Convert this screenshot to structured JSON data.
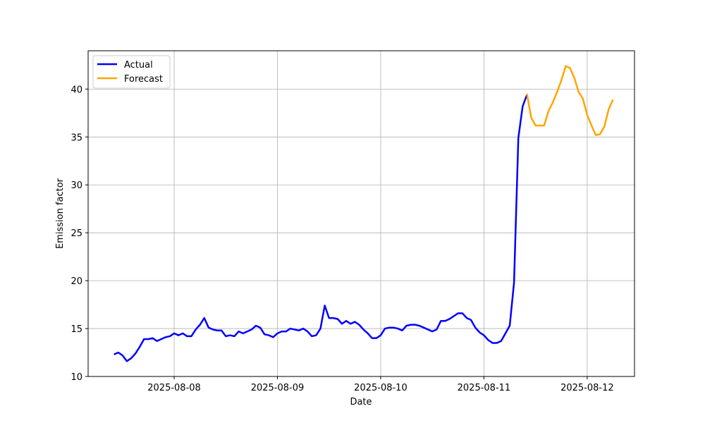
{
  "chart_data": {
    "type": "line",
    "title": "",
    "xlabel": "Date",
    "ylabel": "Emission factor",
    "xlim": [
      "2025-08-07 04:00",
      "2025-08-12 11:00"
    ],
    "ylim": [
      10,
      44
    ],
    "grid": true,
    "legend_position": "top-left",
    "x_ticks": [
      "2025-08-08",
      "2025-08-09",
      "2025-08-10",
      "2025-08-11",
      "2025-08-12"
    ],
    "y_ticks": [
      10,
      15,
      20,
      25,
      30,
      35,
      40
    ],
    "series": [
      {
        "name": "Actual",
        "color": "#0000ff",
        "points": [
          [
            "2025-08-07 10:00",
            12.3
          ],
          [
            "2025-08-07 11:00",
            12.5
          ],
          [
            "2025-08-07 12:00",
            12.2
          ],
          [
            "2025-08-07 13:00",
            11.6
          ],
          [
            "2025-08-07 14:00",
            11.9
          ],
          [
            "2025-08-07 15:00",
            12.4
          ],
          [
            "2025-08-07 16:00",
            13.1
          ],
          [
            "2025-08-07 17:00",
            13.9
          ],
          [
            "2025-08-07 18:00",
            13.9
          ],
          [
            "2025-08-07 19:00",
            14.0
          ],
          [
            "2025-08-07 20:00",
            13.7
          ],
          [
            "2025-08-07 21:00",
            13.9
          ],
          [
            "2025-08-07 22:00",
            14.1
          ],
          [
            "2025-08-07 23:00",
            14.2
          ],
          [
            "2025-08-08 00:00",
            14.5
          ],
          [
            "2025-08-08 01:00",
            14.3
          ],
          [
            "2025-08-08 02:00",
            14.5
          ],
          [
            "2025-08-08 03:00",
            14.2
          ],
          [
            "2025-08-08 04:00",
            14.2
          ],
          [
            "2025-08-08 05:00",
            14.9
          ],
          [
            "2025-08-08 06:00",
            15.4
          ],
          [
            "2025-08-08 07:00",
            16.1
          ],
          [
            "2025-08-08 08:00",
            15.1
          ],
          [
            "2025-08-08 09:00",
            14.9
          ],
          [
            "2025-08-08 10:00",
            14.8
          ],
          [
            "2025-08-08 11:00",
            14.8
          ],
          [
            "2025-08-08 12:00",
            14.2
          ],
          [
            "2025-08-08 13:00",
            14.3
          ],
          [
            "2025-08-08 14:00",
            14.2
          ],
          [
            "2025-08-08 15:00",
            14.7
          ],
          [
            "2025-08-08 16:00",
            14.5
          ],
          [
            "2025-08-08 17:00",
            14.7
          ],
          [
            "2025-08-08 18:00",
            14.9
          ],
          [
            "2025-08-08 19:00",
            15.3
          ],
          [
            "2025-08-08 20:00",
            15.1
          ],
          [
            "2025-08-08 21:00",
            14.4
          ],
          [
            "2025-08-08 22:00",
            14.3
          ],
          [
            "2025-08-08 23:00",
            14.1
          ],
          [
            "2025-08-09 00:00",
            14.5
          ],
          [
            "2025-08-09 01:00",
            14.7
          ],
          [
            "2025-08-09 02:00",
            14.7
          ],
          [
            "2025-08-09 03:00",
            15.0
          ],
          [
            "2025-08-09 04:00",
            14.9
          ],
          [
            "2025-08-09 05:00",
            14.8
          ],
          [
            "2025-08-09 06:00",
            15.0
          ],
          [
            "2025-08-09 07:00",
            14.7
          ],
          [
            "2025-08-09 08:00",
            14.2
          ],
          [
            "2025-08-09 09:00",
            14.3
          ],
          [
            "2025-08-09 10:00",
            15.0
          ],
          [
            "2025-08-09 11:00",
            17.4
          ],
          [
            "2025-08-09 12:00",
            16.1
          ],
          [
            "2025-08-09 13:00",
            16.1
          ],
          [
            "2025-08-09 14:00",
            16.0
          ],
          [
            "2025-08-09 15:00",
            15.5
          ],
          [
            "2025-08-09 16:00",
            15.8
          ],
          [
            "2025-08-09 17:00",
            15.5
          ],
          [
            "2025-08-09 18:00",
            15.7
          ],
          [
            "2025-08-09 19:00",
            15.4
          ],
          [
            "2025-08-09 20:00",
            14.9
          ],
          [
            "2025-08-09 21:00",
            14.5
          ],
          [
            "2025-08-09 22:00",
            14.0
          ],
          [
            "2025-08-09 23:00",
            14.0
          ],
          [
            "2025-08-10 00:00",
            14.3
          ],
          [
            "2025-08-10 01:00",
            15.0
          ],
          [
            "2025-08-10 02:00",
            15.1
          ],
          [
            "2025-08-10 03:00",
            15.1
          ],
          [
            "2025-08-10 04:00",
            15.0
          ],
          [
            "2025-08-10 05:00",
            14.8
          ],
          [
            "2025-08-10 06:00",
            15.3
          ],
          [
            "2025-08-10 07:00",
            15.4
          ],
          [
            "2025-08-10 08:00",
            15.4
          ],
          [
            "2025-08-10 09:00",
            15.3
          ],
          [
            "2025-08-10 10:00",
            15.1
          ],
          [
            "2025-08-10 11:00",
            14.9
          ],
          [
            "2025-08-10 12:00",
            14.7
          ],
          [
            "2025-08-10 13:00",
            14.9
          ],
          [
            "2025-08-10 14:00",
            15.8
          ],
          [
            "2025-08-10 15:00",
            15.8
          ],
          [
            "2025-08-10 16:00",
            16.0
          ],
          [
            "2025-08-10 17:00",
            16.3
          ],
          [
            "2025-08-10 18:00",
            16.6
          ],
          [
            "2025-08-10 19:00",
            16.6
          ],
          [
            "2025-08-10 20:00",
            16.1
          ],
          [
            "2025-08-10 21:00",
            15.9
          ],
          [
            "2025-08-10 22:00",
            15.1
          ],
          [
            "2025-08-10 23:00",
            14.6
          ],
          [
            "2025-08-11 00:00",
            14.3
          ],
          [
            "2025-08-11 01:00",
            13.8
          ],
          [
            "2025-08-11 02:00",
            13.5
          ],
          [
            "2025-08-11 03:00",
            13.5
          ],
          [
            "2025-08-11 04:00",
            13.7
          ],
          [
            "2025-08-11 05:00",
            14.5
          ],
          [
            "2025-08-11 06:00",
            15.3
          ],
          [
            "2025-08-11 07:00",
            19.8
          ],
          [
            "2025-08-11 08:00",
            34.9
          ],
          [
            "2025-08-11 09:00",
            38.2
          ],
          [
            "2025-08-11 10:00",
            39.4
          ]
        ]
      },
      {
        "name": "Forecast",
        "color": "#ffa500",
        "points": [
          [
            "2025-08-11 10:00",
            39.5
          ],
          [
            "2025-08-11 11:00",
            37.0
          ],
          [
            "2025-08-11 12:00",
            36.2
          ],
          [
            "2025-08-11 13:00",
            36.2
          ],
          [
            "2025-08-11 14:00",
            36.2
          ],
          [
            "2025-08-11 15:00",
            37.7
          ],
          [
            "2025-08-11 16:00",
            38.6
          ],
          [
            "2025-08-11 17:00",
            39.7
          ],
          [
            "2025-08-11 18:00",
            40.9
          ],
          [
            "2025-08-11 19:00",
            42.4
          ],
          [
            "2025-08-11 20:00",
            42.2
          ],
          [
            "2025-08-11 21:00",
            41.2
          ],
          [
            "2025-08-11 22:00",
            39.7
          ],
          [
            "2025-08-11 23:00",
            39.0
          ],
          [
            "2025-08-12 00:00",
            37.3
          ],
          [
            "2025-08-12 01:00",
            36.2
          ],
          [
            "2025-08-12 02:00",
            35.2
          ],
          [
            "2025-08-12 03:00",
            35.3
          ],
          [
            "2025-08-12 04:00",
            36.1
          ],
          [
            "2025-08-12 05:00",
            37.9
          ],
          [
            "2025-08-12 06:00",
            38.9
          ]
        ]
      }
    ]
  }
}
